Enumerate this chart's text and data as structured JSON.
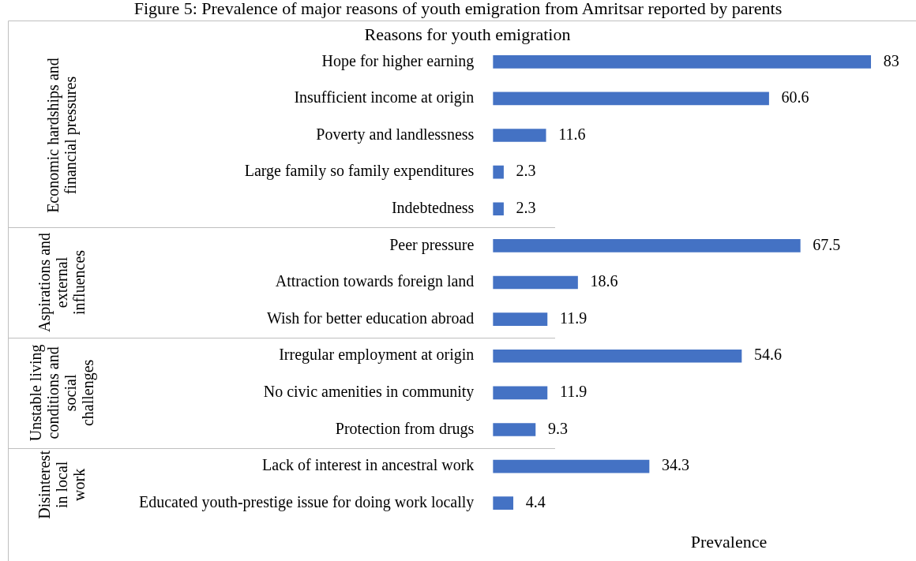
{
  "chart_data": {
    "type": "bar",
    "orientation": "horizontal",
    "title": "Reasons for youth emigration",
    "xlabel": "Prevalence",
    "categories": [
      "Hope for higher earning",
      "Insufficient income at origin",
      "Poverty and landlessness",
      "Large family so family expenditures",
      "Indebtedness",
      "Peer pressure",
      "Attraction towards foreign land",
      "Wish for better education abroad",
      "Irregular employment at origin",
      "No civic amenities in community",
      "Protection from drugs",
      "Lack of interest in ancestral work",
      "Educated youth-prestige issue for doing work locally"
    ],
    "values": [
      83,
      60.6,
      11.6,
      2.3,
      2.3,
      67.5,
      18.6,
      11.9,
      54.6,
      11.9,
      9.3,
      34.3,
      4.4
    ],
    "color": "#4472c4",
    "data_labels": true,
    "legend": false,
    "tick_labels": "y",
    "annotations": [
      "Figure 5: Prevalence of major reasons of youth emigration from Amritsar reported by parents",
      "Economic hardships and financial pressures",
      "Aspirations and external influences",
      "Unstable living conditions and social challenges",
      "Disinterest in local work"
    ]
  }
}
